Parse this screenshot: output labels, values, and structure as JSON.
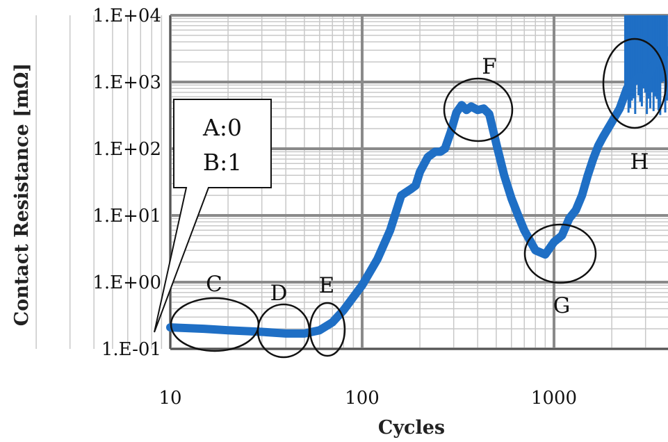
{
  "chart_data": {
    "type": "line",
    "title": "",
    "xlabel": "Cycles",
    "ylabel": "Contact Resistance [mΩ]",
    "xscale": "log",
    "yscale": "log",
    "xlim": [
      10,
      4000
    ],
    "ylim": [
      0.1,
      10000
    ],
    "grid": true,
    "x_ticks": [
      {
        "value": 10,
        "label": "10"
      },
      {
        "value": 100,
        "label": "100"
      },
      {
        "value": 1000,
        "label": "1000"
      }
    ],
    "y_ticks": [
      {
        "value": 0.1,
        "label": "1.E-01"
      },
      {
        "value": 1,
        "label": "1.E+00"
      },
      {
        "value": 10,
        "label": "1.E+01"
      },
      {
        "value": 100,
        "label": "1.E+02"
      },
      {
        "value": 1000,
        "label": "1.E+03"
      },
      {
        "value": 10000,
        "label": "1.E+04"
      }
    ],
    "series_color": "#1f6fc5",
    "series": [
      {
        "name": "",
        "points": [
          [
            10,
            0.21
          ],
          [
            15,
            0.2
          ],
          [
            20,
            0.19
          ],
          [
            30,
            0.18
          ],
          [
            40,
            0.17
          ],
          [
            50,
            0.17
          ],
          [
            60,
            0.19
          ],
          [
            70,
            0.25
          ],
          [
            80,
            0.38
          ],
          [
            100,
            0.9
          ],
          [
            120,
            2.2
          ],
          [
            140,
            6
          ],
          [
            160,
            20
          ],
          [
            180,
            25
          ],
          [
            190,
            28
          ],
          [
            200,
            45
          ],
          [
            220,
            75
          ],
          [
            240,
            90
          ],
          [
            255,
            90
          ],
          [
            270,
            100
          ],
          [
            290,
            180
          ],
          [
            310,
            350
          ],
          [
            330,
            450
          ],
          [
            350,
            380
          ],
          [
            370,
            430
          ],
          [
            400,
            380
          ],
          [
            430,
            400
          ],
          [
            460,
            330
          ],
          [
            500,
            120
          ],
          [
            550,
            40
          ],
          [
            600,
            18
          ],
          [
            650,
            10
          ],
          [
            700,
            6
          ],
          [
            800,
            3
          ],
          [
            900,
            2.6
          ],
          [
            1000,
            4
          ],
          [
            1100,
            5
          ],
          [
            1200,
            9
          ],
          [
            1300,
            12
          ],
          [
            1400,
            20
          ],
          [
            1500,
            40
          ],
          [
            1600,
            70
          ],
          [
            1700,
            110
          ],
          [
            1800,
            150
          ],
          [
            2000,
            250
          ],
          [
            2200,
            400
          ],
          [
            2400,
            800
          ],
          [
            2600,
            1000
          ],
          [
            2800,
            1200
          ],
          [
            3000,
            1000
          ],
          [
            3300,
            1800
          ],
          [
            3600,
            2500
          ],
          [
            4000,
            3000
          ]
        ]
      }
    ],
    "noise_band": {
      "x_start": 2350,
      "x_end": 4000,
      "y_low": 300,
      "y_high": 10000
    },
    "annotations": [
      {
        "label": "C",
        "x": 17,
        "y": 0.2
      },
      {
        "label": "D",
        "x": 37,
        "y": 0.18
      },
      {
        "label": "E",
        "x": 61,
        "y": 0.2
      },
      {
        "label": "F",
        "x": 400,
        "y": 450
      },
      {
        "label": "G",
        "x": 1000,
        "y": 3
      },
      {
        "label": "H",
        "x": 2800,
        "y": 1000
      }
    ],
    "callout": {
      "lines": [
        "A:0",
        "B:1"
      ]
    }
  }
}
